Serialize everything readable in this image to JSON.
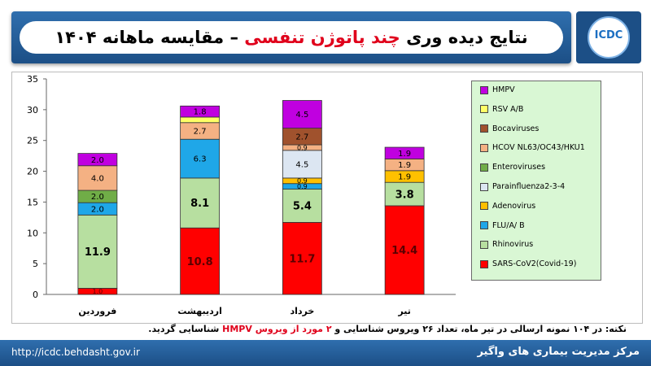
{
  "header": {
    "title_main": "نتایج دیده وری",
    "title_red": "چند پاتوژن تنفسی",
    "title_dash": "–",
    "title_tail": "مقایسه ماهانه ۱۴۰۴",
    "logo_text": "ICDC"
  },
  "note": {
    "part1": "نکته: در ۱۰۴ نمونه ارسالی در تیر ماه، تعداد ۲۶ ویروس شناسایی و",
    "part2": "۲ مورد از ویروس HMPV",
    "part3": "شناسایی گردید."
  },
  "footer": {
    "url": "http://icdc.behdasht.gov.ir",
    "org": "مرکز مدیریت بیماری های واگیر"
  },
  "chart_data": {
    "type": "bar",
    "stacked": true,
    "categories": [
      "فروردین",
      "اردیبهشت",
      "خرداد",
      "تیر"
    ],
    "ylim": [
      0,
      35
    ],
    "yticks": [
      0,
      5,
      10,
      15,
      20,
      25,
      30,
      35
    ],
    "grid": false,
    "legend_position": "right",
    "series": [
      {
        "name": "SARS-CoV2(Covid-19)",
        "color": "#ff0000",
        "values": [
          1.0,
          10.8,
          11.7,
          14.4
        ],
        "labels": [
          "1.0",
          "10.8",
          "11.7",
          "14.4"
        ]
      },
      {
        "name": "Rhinovirus",
        "color": "#b7dfa0",
        "values": [
          11.9,
          8.1,
          5.4,
          3.8
        ],
        "labels": [
          "11.9",
          "8.1",
          "5.4",
          "3.8"
        ]
      },
      {
        "name": "FLU/A/ B",
        "color": "#1fa7e8",
        "values": [
          2.0,
          6.3,
          0.9,
          0
        ],
        "labels": [
          "2.0",
          "6.3",
          "0.9",
          ""
        ]
      },
      {
        "name": "Adenovirus",
        "color": "#ffc000",
        "values": [
          0,
          0,
          0.9,
          1.9
        ],
        "labels": [
          "",
          "",
          "0.9",
          "1.9"
        ]
      },
      {
        "name": "Parainfluenza2-3-4",
        "color": "#dce6f2",
        "values": [
          0,
          0,
          4.5,
          0
        ],
        "labels": [
          "",
          "",
          "4.5",
          ""
        ]
      },
      {
        "name": "Enteroviruses",
        "color": "#70ad47",
        "values": [
          2.0,
          0,
          0,
          0
        ],
        "labels": [
          "2.0",
          "",
          "",
          ""
        ]
      },
      {
        "name": "HCOV NL63/OC43/HKU1",
        "color": "#f4b183",
        "values": [
          4.0,
          2.7,
          0.9,
          1.9
        ],
        "labels": [
          "4.0",
          "2.7",
          "0.9",
          "1.9"
        ]
      },
      {
        "name": "Bocaviruses",
        "color": "#a0522d",
        "values": [
          0,
          0,
          2.7,
          0
        ],
        "labels": [
          "",
          "",
          "2.7",
          ""
        ]
      },
      {
        "name": "RSV A/B",
        "color": "#ffff66",
        "values": [
          0,
          0.9,
          0,
          0
        ],
        "labels": [
          "",
          "",
          "",
          ""
        ]
      },
      {
        "name": "HMPV",
        "color": "#c000e0",
        "values": [
          2.0,
          1.8,
          4.5,
          1.9
        ],
        "labels": [
          "2.0",
          "1.8",
          "4.5",
          "1.9"
        ]
      }
    ]
  }
}
